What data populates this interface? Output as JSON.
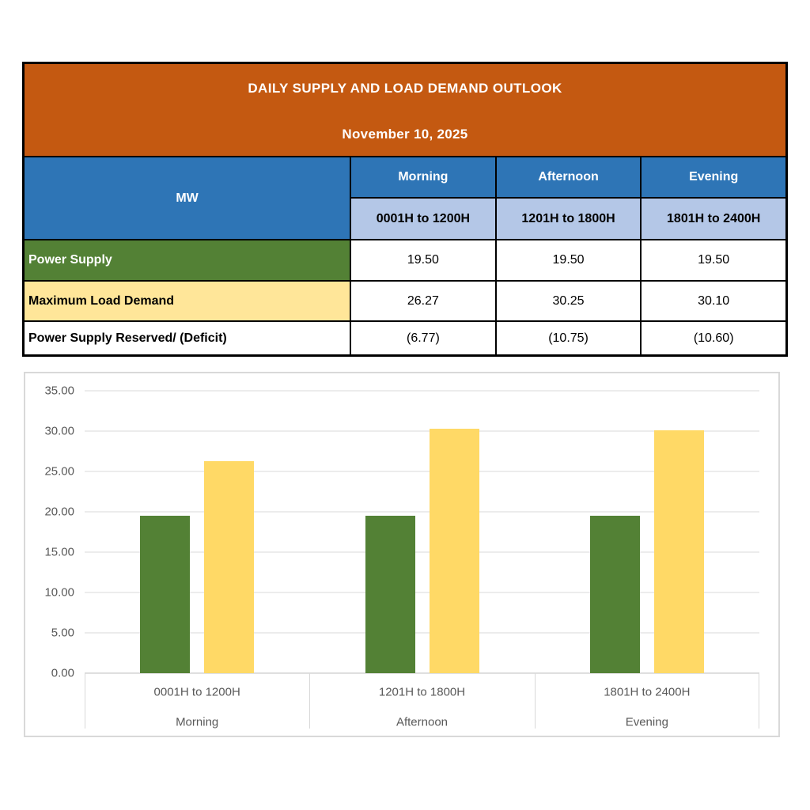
{
  "header": {
    "title": "DAILY SUPPLY AND LOAD DEMAND OUTLOOK",
    "date": "November 10, 2025"
  },
  "table": {
    "unit_label": "MW",
    "periods": [
      {
        "name": "Morning",
        "hours": "0001H to 1200H"
      },
      {
        "name": "Afternoon",
        "hours": "1201H to 1800H"
      },
      {
        "name": "Evening",
        "hours": "1801H to 2400H"
      }
    ],
    "rows": [
      {
        "label": "Power Supply",
        "values": [
          "19.50",
          "19.50",
          "19.50"
        ]
      },
      {
        "label": "Maximum Load Demand",
        "values": [
          "26.27",
          "30.25",
          "30.10"
        ]
      },
      {
        "label": "Power Supply Reserved/ (Deficit)",
        "values": [
          "(6.77)",
          "(10.75)",
          "(10.60)"
        ]
      }
    ]
  },
  "chart_data": {
    "type": "bar",
    "title": "",
    "categories": [
      "0001H to 1200H",
      "1201H to 1800H",
      "1801H to 2400H"
    ],
    "category_groups": [
      "Morning",
      "Afternoon",
      "Evening"
    ],
    "series": [
      {
        "name": "Power Supply",
        "color": "#538135",
        "values": [
          19.5,
          19.5,
          19.5
        ]
      },
      {
        "name": "Maximum Load Demand",
        "color": "#FFD966",
        "values": [
          26.27,
          30.25,
          30.1
        ]
      }
    ],
    "xlabel": "",
    "ylabel": "",
    "ylim": [
      0,
      35
    ],
    "ytick_step": 5,
    "grid": true,
    "legend": "none"
  },
  "colors": {
    "header_orange": "#C45911",
    "header_blue": "#2E75B6",
    "subheader_blue": "#B4C7E7",
    "supply_green": "#538135",
    "demand_yellow_row": "#FFE699",
    "demand_yellow_bar": "#FFD966",
    "gridline_gray": "#D9D9D9",
    "axis_text_gray": "#595959",
    "table_border": "#000000"
  }
}
